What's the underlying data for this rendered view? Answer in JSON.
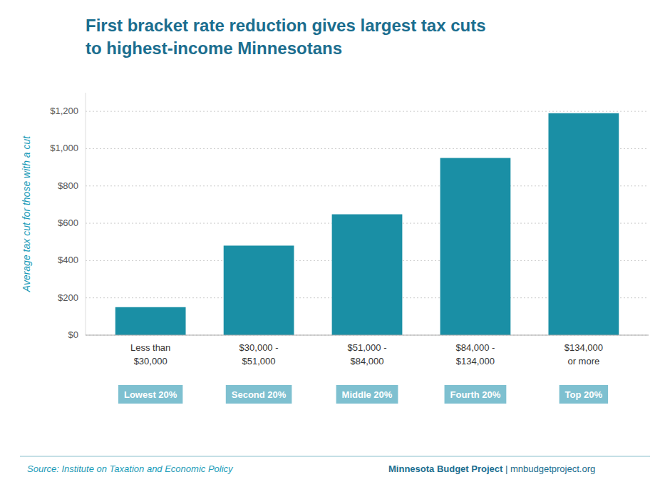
{
  "chart_data": {
    "type": "bar",
    "title": "First bracket rate reduction gives largest tax cuts\nto highest-income Minnesotans",
    "ylabel": "Average tax cut for those with a cut",
    "categories": [
      "Less than\n$30,000",
      "$30,000 -\n$51,000",
      "$51,000 -\n$84,000",
      "$84,000 -\n$134,000",
      "$134,000\nor more"
    ],
    "values": [
      150,
      480,
      648,
      950,
      1190
    ],
    "color": "#1a8fa5",
    "annotations": [
      "Lowest 20%",
      "Second 20%",
      "Middle 20%",
      "Fourth 20%",
      "Top 20%"
    ],
    "source": "Source: Institute on Taxation and Economic Policy",
    "credit": [
      "Minnesota Budget Project",
      " | ",
      "mnbudgetproject.org"
    ],
    "ylim": [
      0,
      1300
    ],
    "yticks": [
      {
        "value": 0,
        "label": "$0"
      },
      {
        "value": 200,
        "label": "$200"
      },
      {
        "value": 400,
        "label": "$400"
      },
      {
        "value": 600,
        "label": "$600"
      },
      {
        "value": 800,
        "label": "$800"
      },
      {
        "value": 1000,
        "label": "$1,000"
      },
      {
        "value": 1200,
        "label": "$1,200"
      }
    ],
    "grid": true
  }
}
